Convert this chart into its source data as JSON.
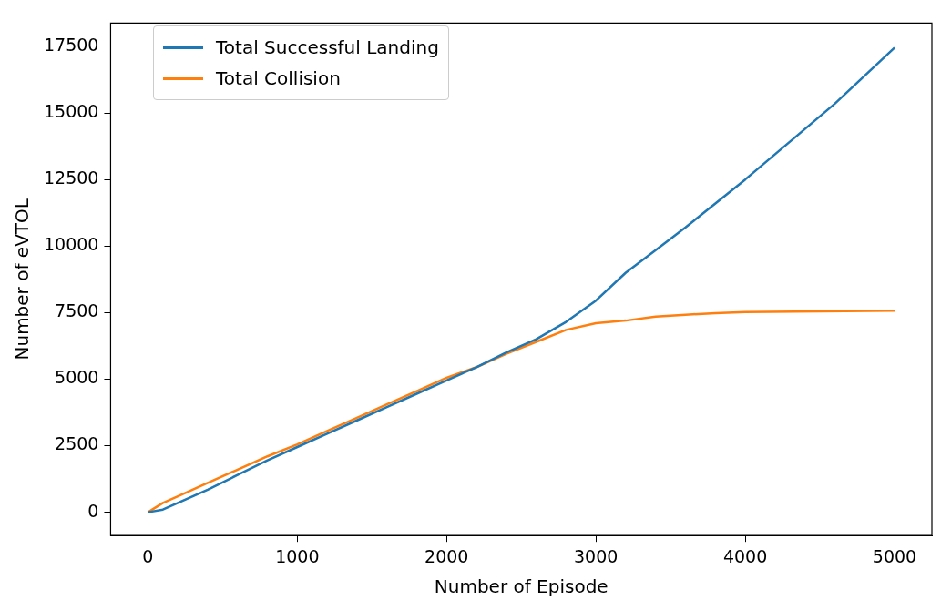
{
  "chart_data": {
    "type": "line",
    "xlabel": "Number of Episode",
    "ylabel": "Number of eVTOL",
    "xlim": [
      -250,
      5250
    ],
    "ylim": [
      -875,
      18375
    ],
    "xticks": [
      0,
      1000,
      2000,
      3000,
      4000,
      5000
    ],
    "yticks": [
      0,
      2500,
      5000,
      7500,
      10000,
      12500,
      15000,
      17500
    ],
    "legend": "top left",
    "grid": false,
    "marker": "none",
    "line_style": "solid",
    "series": [
      {
        "name": "Total Successful Landing",
        "color": "#1f77b4",
        "x": [
          0,
          100,
          200,
          400,
          600,
          800,
          1000,
          1200,
          1400,
          1600,
          1800,
          2000,
          2200,
          2400,
          2600,
          2800,
          3000,
          3200,
          3400,
          3600,
          3800,
          4000,
          4200,
          4400,
          4600,
          4800,
          5000
        ],
        "values": [
          0,
          100,
          350,
          850,
          1400,
          1950,
          2450,
          2950,
          3450,
          3950,
          4450,
          4950,
          5450,
          6000,
          6500,
          7150,
          7950,
          9000,
          9850,
          10700,
          11600,
          12500,
          13450,
          14400,
          15350,
          16400,
          17450
        ]
      },
      {
        "name": "Total Collision",
        "color": "#ff7f0e",
        "x": [
          0,
          100,
          200,
          400,
          600,
          800,
          1000,
          1200,
          1400,
          1600,
          1800,
          2000,
          2200,
          2400,
          2600,
          2800,
          3000,
          3200,
          3400,
          3600,
          3800,
          4000,
          4500,
          5000
        ],
        "values": [
          0,
          350,
          600,
          1100,
          1600,
          2100,
          2550,
          3050,
          3550,
          4050,
          4550,
          5050,
          5450,
          5950,
          6400,
          6850,
          7100,
          7200,
          7350,
          7420,
          7480,
          7520,
          7550,
          7570
        ]
      }
    ]
  }
}
